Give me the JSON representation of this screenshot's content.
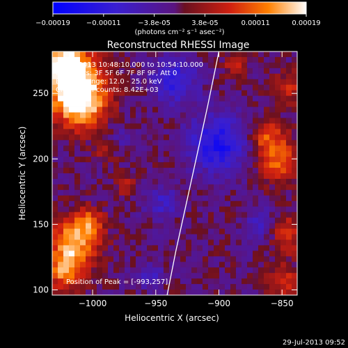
{
  "chart_data": {
    "type": "heatmap",
    "title": "Reconstructed RHESSI Image",
    "xlabel": "Heliocentric X (arcsec)",
    "ylabel": "Heliocentric Y (arcsec)",
    "xlim": [
      -1032,
      -838
    ],
    "ylim": [
      96,
      282
    ],
    "x_ticks": [
      {
        "value": -1000,
        "label": "−1000"
      },
      {
        "value": -950,
        "label": "−950"
      },
      {
        "value": -900,
        "label": "−900"
      },
      {
        "value": -850,
        "label": "−850"
      }
    ],
    "y_ticks": [
      {
        "value": 100,
        "label": "100"
      },
      {
        "value": 150,
        "label": "150"
      },
      {
        "value": 200,
        "label": "200"
      },
      {
        "value": 250,
        "label": "250"
      }
    ],
    "colorbar": {
      "range": [
        -0.00019,
        0.00019
      ],
      "tick_labels": [
        "−0.00019",
        "−0.00011",
        "−3.8e-05",
        "3.8e-05",
        "0.00011",
        "0.00019"
      ],
      "unit_label": "(photons cm⁻² s⁻¹ asec⁻²)"
    },
    "annotations": [
      "29-Jul-2013 10:48:10.000 to 10:54:10.000",
      "Detectors: 3F 5F 6F 7F 8F 9F, Att 0",
      "Energy Range: 12.0 - 25.0 keV",
      "Clean   Total counts: 8.42E+03"
    ],
    "peak_label": "Position of Peak = [-993,257]",
    "limb_curve": [
      {
        "x": -941,
        "y": 96
      },
      {
        "x": -934,
        "y": 130
      },
      {
        "x": -926,
        "y": 165
      },
      {
        "x": -918,
        "y": 200
      },
      {
        "x": -909,
        "y": 240
      },
      {
        "x": -900,
        "y": 282
      }
    ]
  },
  "footer": {
    "timestamp": "29-Jul-2013 09:52"
  },
  "colors": {
    "background": "#000000",
    "foreground": "#ffffff",
    "colormap_stops": [
      "#0000ff",
      "#5a14a0",
      "#c81e1e",
      "#ff5a00",
      "#ffffff"
    ]
  }
}
